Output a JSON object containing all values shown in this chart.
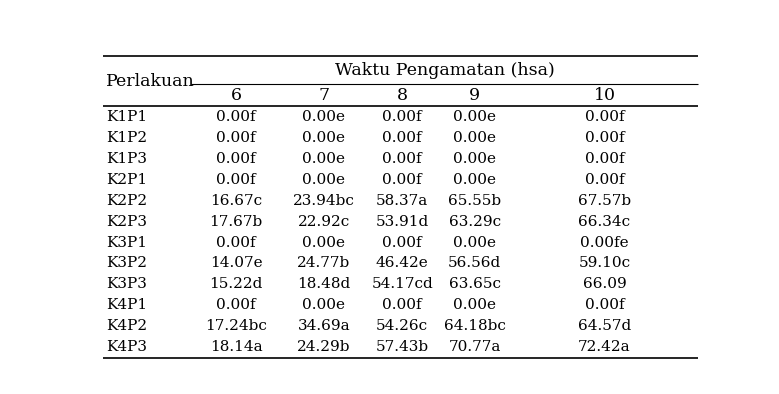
{
  "col_header_top": "Waktu Pengamatan (hsa)",
  "col_header_sub": [
    "6",
    "7",
    "8",
    "9",
    "10"
  ],
  "row_labels": [
    "K1P1",
    "K1P2",
    "K1P3",
    "K2P1",
    "K2P2",
    "K2P3",
    "K3P1",
    "K3P2",
    "K3P3",
    "K4P1",
    "K4P2",
    "K4P3"
  ],
  "data": [
    [
      "0.00f",
      "0.00e",
      "0.00f",
      "0.00e",
      "0.00f"
    ],
    [
      "0.00f",
      "0.00e",
      "0.00f",
      "0.00e",
      "0.00f"
    ],
    [
      "0.00f",
      "0.00e",
      "0.00f",
      "0.00e",
      "0.00f"
    ],
    [
      "0.00f",
      "0.00e",
      "0.00f",
      "0.00e",
      "0.00f"
    ],
    [
      "16.67c",
      "23.94bc",
      "58.37a",
      "65.55b",
      "67.57b"
    ],
    [
      "17.67b",
      "22.92c",
      "53.91d",
      "63.29c",
      "66.34c"
    ],
    [
      "0.00f",
      "0.00e",
      "0.00f",
      "0.00e",
      "0.00fe"
    ],
    [
      "14.07e",
      "24.77b",
      "46.42e",
      "56.56d",
      "59.10c"
    ],
    [
      "15.22d",
      "18.48d",
      "54.17cd",
      "63.65c",
      "66.09"
    ],
    [
      "0.00f",
      "0.00e",
      "0.00f",
      "0.00e",
      "0.00f"
    ],
    [
      "17.24bc",
      "34.69a",
      "54.26c",
      "64.18bc",
      "64.57d"
    ],
    [
      "18.14a",
      "24.29b",
      "57.43b",
      "70.77a",
      "72.42a"
    ]
  ],
  "perlakuan_label": "Perlakuan",
  "background_color": "#ffffff",
  "text_color": "#000000",
  "font_family": "DejaVu Serif",
  "font_size": 11.0,
  "header_font_size": 12.5
}
